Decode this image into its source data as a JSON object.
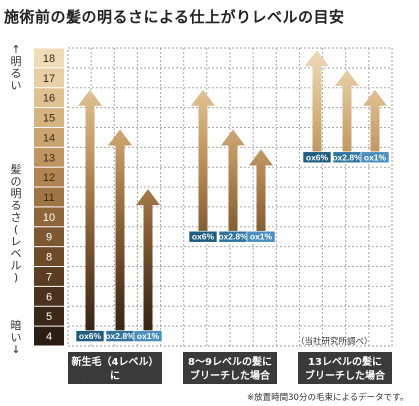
{
  "title": "施術前の髪の明るさによる仕上がりレベルの目安",
  "y_axis": {
    "top_label": "↑明るい",
    "middle_label": "髪の明るさ(レベル)",
    "bottom_label": "暗い↓"
  },
  "source_note": "（当社研究所調べ）",
  "footnote": "※放置時間30分の毛束によるデータです。",
  "groups": [
    {
      "label_line1": "新生毛（4レベル）に",
      "label_line2": "ブリーチした場合"
    },
    {
      "label_line1": "8〜9レベルの髪に",
      "label_line2": "ブリーチした場合"
    },
    {
      "label_line1": "13レベルの髪に",
      "label_line2": "ブリーチした場合"
    }
  ],
  "chart_data": {
    "type": "bar",
    "ylabel": "髪の明るさ(レベル)",
    "levels": [
      4,
      5,
      6,
      7,
      8,
      9,
      10,
      11,
      12,
      13,
      14,
      15,
      16,
      17,
      18
    ],
    "level_colors": [
      "#2b1d12",
      "#3b2716",
      "#4a321c",
      "#5b3d22",
      "#6d4a28",
      "#7e5830",
      "#8f663a",
      "#a07545",
      "#b18552",
      "#c09560",
      "#cca46f",
      "#d7b380",
      "#e0c192",
      "#e8cfa6",
      "#eedcb9"
    ],
    "ylim": [
      4,
      18
    ],
    "series": [
      {
        "name": "OX6%",
        "label": "ox6%"
      },
      {
        "name": "OX2.8%",
        "label": "ox2.8%"
      },
      {
        "name": "OX1%",
        "label": "ox1%"
      }
    ],
    "bars": [
      {
        "group": 0,
        "series": 0,
        "start": 4,
        "end": 16
      },
      {
        "group": 0,
        "series": 1,
        "start": 4,
        "end": 14
      },
      {
        "group": 0,
        "series": 2,
        "start": 4,
        "end": 11
      },
      {
        "group": 1,
        "series": 0,
        "start": 9,
        "end": 16
      },
      {
        "group": 1,
        "series": 1,
        "start": 9,
        "end": 14
      },
      {
        "group": 1,
        "series": 2,
        "start": 9,
        "end": 13
      },
      {
        "group": 2,
        "series": 0,
        "start": 13,
        "end": 18
      },
      {
        "group": 2,
        "series": 1,
        "start": 13,
        "end": 17
      },
      {
        "group": 2,
        "series": 2,
        "start": 13,
        "end": 16
      }
    ]
  }
}
